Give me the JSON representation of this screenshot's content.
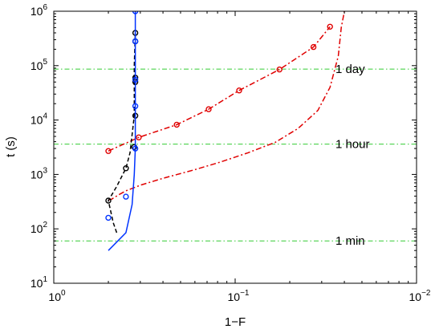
{
  "chart_data": {
    "type": "line",
    "title": "",
    "xlabel": "1−F",
    "ylabel": "t (s)",
    "x_scale": "log-reversed",
    "y_scale": "log",
    "xlim": [
      1,
      0.01
    ],
    "ylim": [
      10,
      1000000
    ],
    "grid": false,
    "x_ticks": [
      {
        "value": 1,
        "base": "10",
        "exp": "0"
      },
      {
        "value": 0.1,
        "base": "10",
        "exp": "−1"
      },
      {
        "value": 0.01,
        "base": "10",
        "exp": "−2"
      }
    ],
    "y_ticks": [
      {
        "value": 10,
        "base": "10",
        "exp": "1"
      },
      {
        "value": 100,
        "base": "10",
        "exp": "2"
      },
      {
        "value": 1000,
        "base": "10",
        "exp": "3"
      },
      {
        "value": 10000,
        "base": "10",
        "exp": "4"
      },
      {
        "value": 100000,
        "base": "10",
        "exp": "5"
      },
      {
        "value": 1000000,
        "base": "10",
        "exp": "6"
      }
    ],
    "reference_lines": [
      {
        "y": 60,
        "label": "1 min",
        "label_x": 0.028,
        "color": "#33cc33"
      },
      {
        "y": 3600,
        "label": "1 hour",
        "label_x": 0.028,
        "color": "#33cc33"
      },
      {
        "y": 86400,
        "label": "1 day",
        "label_x": 0.028,
        "color": "#33cc33"
      }
    ],
    "series": [
      {
        "style": "dashdot",
        "color": "#e00000",
        "marker": false,
        "x": [
          0.5,
          0.48,
          0.44,
          0.4,
          0.33,
          0.25,
          0.17,
          0.12,
          0.085,
          0.06,
          0.045,
          0.035,
          0.03,
          0.027,
          0.026,
          0.025
        ],
        "y": [
          340,
          350,
          420,
          500,
          640,
          850,
          1200,
          1700,
          2500,
          3900,
          7000,
          15000,
          40000,
          150000,
          500000,
          1000000
        ]
      },
      {
        "style": "dashdot",
        "color": "#e00000",
        "marker": "circle",
        "x": [
          0.5,
          0.34,
          0.21,
          0.14,
          0.095,
          0.057,
          0.037,
          0.03
        ],
        "y": [
          2700,
          4800,
          8200,
          15800,
          35000,
          85000,
          220000,
          520000
        ]
      },
      {
        "style": "dashed",
        "color": "#000000",
        "marker": false,
        "x": [
          0.45,
          0.47,
          0.5,
          0.45,
          0.4,
          0.38,
          0.36,
          0.36,
          0.355
        ],
        "y": [
          85,
          130,
          330,
          600,
          1300,
          2500,
          12000,
          100000,
          400000
        ]
      },
      {
        "style": "none",
        "color": "#000000",
        "marker": "circle",
        "x": [
          0.5,
          0.4,
          0.36,
          0.355,
          0.355,
          0.355,
          0.355,
          0.355
        ],
        "y": [
          330,
          1300,
          3200,
          12000,
          50000,
          60000,
          280000,
          400000
        ]
      },
      {
        "style": "solid",
        "color": "#0033ff",
        "marker": false,
        "x": [
          0.5,
          0.4,
          0.37,
          0.36,
          0.355,
          0.355,
          0.355
        ],
        "y": [
          40,
          85,
          280,
          1000,
          3000,
          50000,
          1000000
        ]
      },
      {
        "style": "none",
        "color": "#0033ff",
        "marker": "circle",
        "x": [
          0.5,
          0.4,
          0.355,
          0.355,
          0.355,
          0.355,
          0.355
        ],
        "y": [
          160,
          390,
          3000,
          18000,
          55000,
          280000,
          1000000
        ]
      }
    ]
  }
}
